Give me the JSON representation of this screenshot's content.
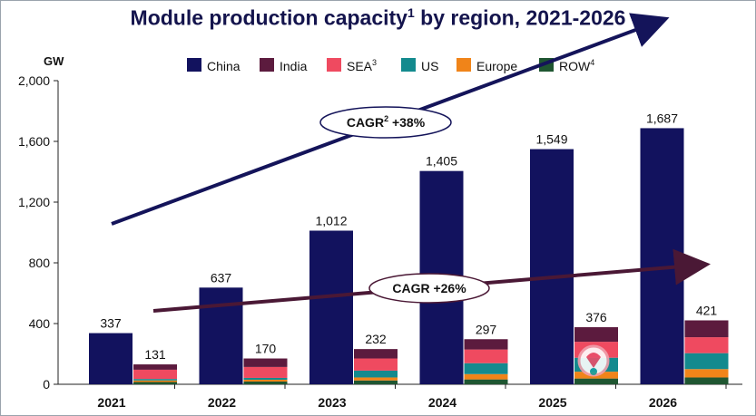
{
  "title_text": "Module production capacity",
  "title_sup": "1",
  "title_rest": " by region, 2021-2026",
  "chart_data": {
    "type": "bar",
    "ylabel": "GW",
    "ylim": [
      0,
      2000
    ],
    "yticks": [
      "0",
      "400",
      "800",
      "1,200",
      "1,600",
      "2,000"
    ],
    "ytick_values": [
      0,
      400,
      800,
      1200,
      1600,
      2000
    ],
    "categories": [
      "2021",
      "2022",
      "2023",
      "2024",
      "2025",
      "2026"
    ],
    "china": {
      "name": "China",
      "color": "#12125e",
      "values": [
        337,
        637,
        1012,
        1405,
        1549,
        1687
      ],
      "labels": [
        "337",
        "637",
        "1,012",
        "1,405",
        "1,549",
        "1,687"
      ]
    },
    "other_totals": {
      "values": [
        131,
        170,
        232,
        297,
        376,
        421
      ],
      "labels": [
        "131",
        "170",
        "232",
        "297",
        "376",
        "421"
      ]
    },
    "stack_series": [
      {
        "name": "ROW",
        "sup": "4",
        "color": "#1f5631",
        "values": [
          15,
          18,
          25,
          32,
          38,
          45
        ]
      },
      {
        "name": "Europe",
        "sup": "",
        "color": "#f08419",
        "values": [
          10,
          12,
          20,
          35,
          45,
          55
        ]
      },
      {
        "name": "US",
        "sup": "",
        "color": "#138a8e",
        "values": [
          10,
          12,
          45,
          72,
          92,
          105
        ]
      },
      {
        "name": "SEA",
        "sup": "3",
        "color": "#ef4a60",
        "values": [
          61,
          72,
          80,
          90,
          105,
          105
        ]
      },
      {
        "name": "India",
        "sup": "",
        "color": "#5c1b3e",
        "values": [
          35,
          56,
          62,
          68,
          96,
          111
        ]
      }
    ],
    "legend_order": [
      "China",
      "India",
      "SEA",
      "US",
      "Europe",
      "ROW"
    ],
    "legend_sups": [
      "",
      "",
      "3",
      "",
      "",
      "4"
    ],
    "legend_colors": [
      "#12125e",
      "#5c1b3e",
      "#ef4a60",
      "#138a8e",
      "#f08419",
      "#1f5631"
    ],
    "legend_position": "top",
    "annotations": [
      {
        "text": "CAGR",
        "sup": "2",
        "rest": " +38%",
        "arrow_color": "#14145a"
      },
      {
        "text": "CAGR +26%",
        "sup": "",
        "rest": "",
        "arrow_color": "#4a1835"
      }
    ],
    "grid": false
  }
}
